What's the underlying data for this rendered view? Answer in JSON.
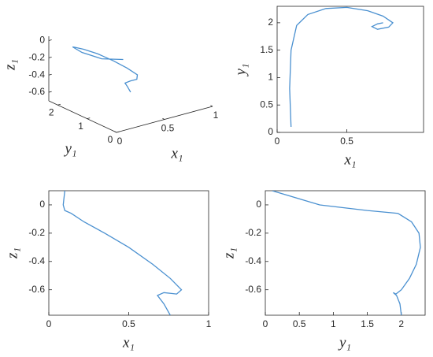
{
  "chart_data": [
    {
      "type": "line3d",
      "color": "#4a90d0",
      "x": [
        0.1,
        0.09,
        0.1,
        0.14,
        0.22,
        0.35,
        0.5,
        0.65,
        0.76,
        0.83,
        0.8,
        0.72,
        0.68,
        0.72,
        0.76
      ],
      "y": [
        0.1,
        0.8,
        1.5,
        1.95,
        2.15,
        2.26,
        2.28,
        2.22,
        2.12,
        2.0,
        1.92,
        1.88,
        1.93,
        1.98,
        2.0
      ],
      "z": [
        0.1,
        0.0,
        -0.04,
        -0.06,
        -0.12,
        -0.2,
        -0.3,
        -0.42,
        -0.52,
        -0.6,
        -0.63,
        -0.62,
        -0.64,
        -0.7,
        -0.78
      ],
      "xlim": [
        0,
        1
      ],
      "ylim": [
        0,
        2.3
      ],
      "zlim": [
        -0.7,
        0.05
      ],
      "xticks": [
        0,
        0.5,
        1
      ],
      "yticks": [
        0,
        1,
        2
      ],
      "zticks": [
        0,
        -0.2,
        -0.4,
        -0.6
      ],
      "xlabel": "x₁",
      "ylabel": "y₁",
      "zlabel": "z₁"
    },
    {
      "type": "line",
      "color": "#4a90d0",
      "x": [
        0.1,
        0.09,
        0.1,
        0.14,
        0.22,
        0.35,
        0.5,
        0.65,
        0.76,
        0.83,
        0.8,
        0.72,
        0.68,
        0.72,
        0.76
      ],
      "values": [
        0.1,
        0.8,
        1.5,
        1.95,
        2.15,
        2.26,
        2.28,
        2.22,
        2.12,
        2.0,
        1.92,
        1.88,
        1.93,
        1.98,
        2.0
      ],
      "xlim": [
        0,
        1.05
      ],
      "ylim": [
        0,
        2.3
      ],
      "xticks": [
        0,
        0.5
      ],
      "yticks": [
        0,
        0.5,
        1,
        1.5,
        2
      ],
      "xlabel": "x₁",
      "ylabel": "y₁"
    },
    {
      "type": "line",
      "color": "#4a90d0",
      "x": [
        0.1,
        0.09,
        0.1,
        0.14,
        0.22,
        0.35,
        0.5,
        0.65,
        0.76,
        0.83,
        0.8,
        0.72,
        0.68,
        0.72,
        0.76
      ],
      "values": [
        0.1,
        0.0,
        -0.04,
        -0.06,
        -0.12,
        -0.2,
        -0.3,
        -0.42,
        -0.52,
        -0.6,
        -0.63,
        -0.62,
        -0.64,
        -0.7,
        -0.78
      ],
      "xlim": [
        0,
        1
      ],
      "ylim": [
        -0.78,
        0.1
      ],
      "xticks": [
        0,
        0.5,
        1
      ],
      "yticks": [
        0,
        -0.2,
        -0.4,
        -0.6
      ],
      "xlabel": "x₁",
      "ylabel": "z₁"
    },
    {
      "type": "line",
      "color": "#4a90d0",
      "x": [
        0.1,
        0.8,
        1.5,
        1.95,
        2.15,
        2.26,
        2.28,
        2.22,
        2.12,
        2.0,
        1.92,
        1.88,
        1.93,
        1.98,
        2.0
      ],
      "values": [
        0.1,
        0.0,
        -0.04,
        -0.06,
        -0.12,
        -0.2,
        -0.3,
        -0.42,
        -0.52,
        -0.6,
        -0.63,
        -0.62,
        -0.64,
        -0.7,
        -0.78
      ],
      "xlim": [
        0,
        2.35
      ],
      "ylim": [
        -0.78,
        0.1
      ],
      "xticks": [
        0,
        0.5,
        1,
        1.5,
        2
      ],
      "yticks": [
        0,
        -0.2,
        -0.4,
        -0.6
      ],
      "xlabel": "y₁",
      "ylabel": "z₁"
    }
  ]
}
